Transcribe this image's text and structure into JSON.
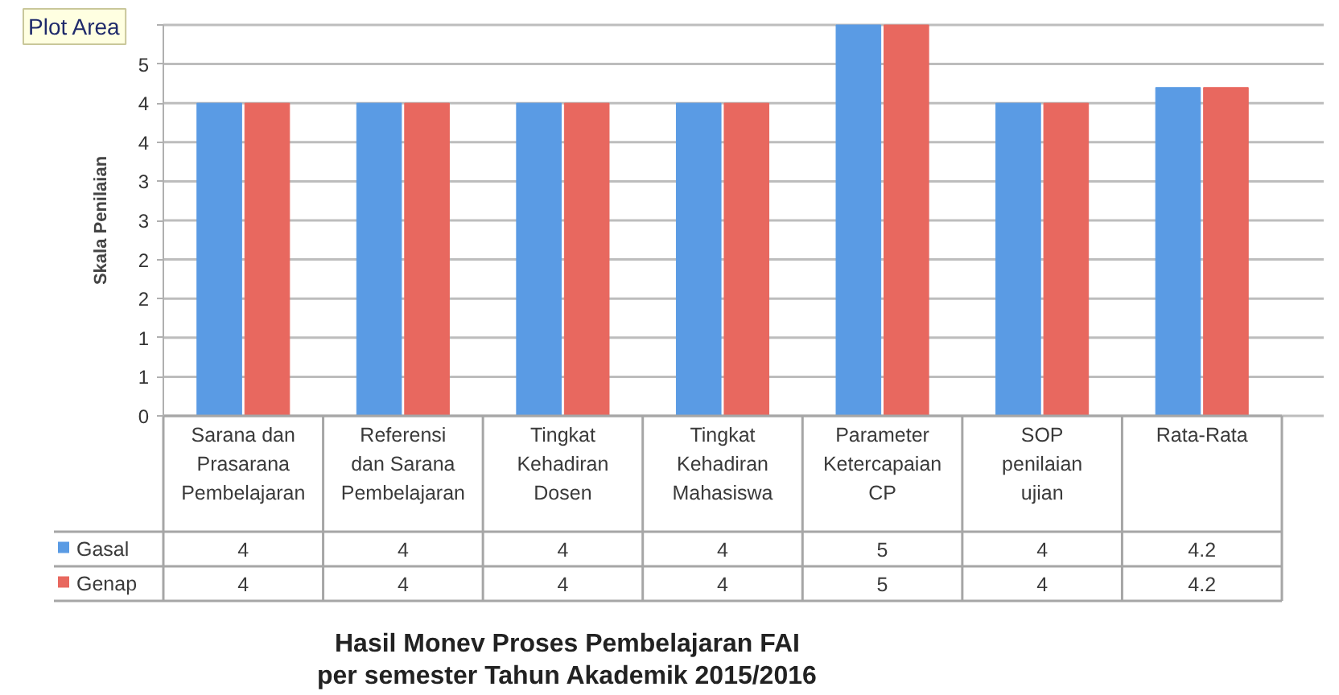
{
  "chart_data": {
    "type": "bar",
    "title": "Hasil Monev Proses Pembelajaran FAI",
    "subtitle": "per semester Tahun Akademik 2015/2016",
    "ylabel": "Skala Penilaian",
    "categories": [
      "Sarana dan Prasarana Pembelajaran",
      "Referensi dan Sarana Pembelajaran",
      "Tingkat Kehadiran Dosen",
      "Tingkat Kehadiran Mahasiswa",
      "Parameter Ketercapaian CP",
      "SOP penilaian ujian",
      "Rata-Rata"
    ],
    "series": [
      {
        "name": "Gasal",
        "color": "#5a9be4",
        "values": [
          4,
          4,
          4,
          4,
          5,
          4,
          4.2
        ]
      },
      {
        "name": "Genap",
        "color": "#e8685f",
        "values": [
          4,
          4,
          4,
          4,
          5,
          4,
          4.2
        ]
      }
    ],
    "ylim": [
      0,
      5
    ],
    "yticks": [
      0,
      {
        "value": 0.5,
        "label": "1"
      },
      1,
      {
        "value": 1.5,
        "label": "2"
      },
      2,
      {
        "value": 2.5,
        "label": "3"
      },
      3,
      {
        "value": 3.5,
        "label": "4"
      },
      4,
      {
        "value": 4.5,
        "label": "5"
      },
      {
        "value": 5,
        "label": null
      }
    ],
    "grid": "y",
    "legend": "bottom",
    "data_labels": true,
    "annotations": [
      "Plot Area"
    ]
  }
}
